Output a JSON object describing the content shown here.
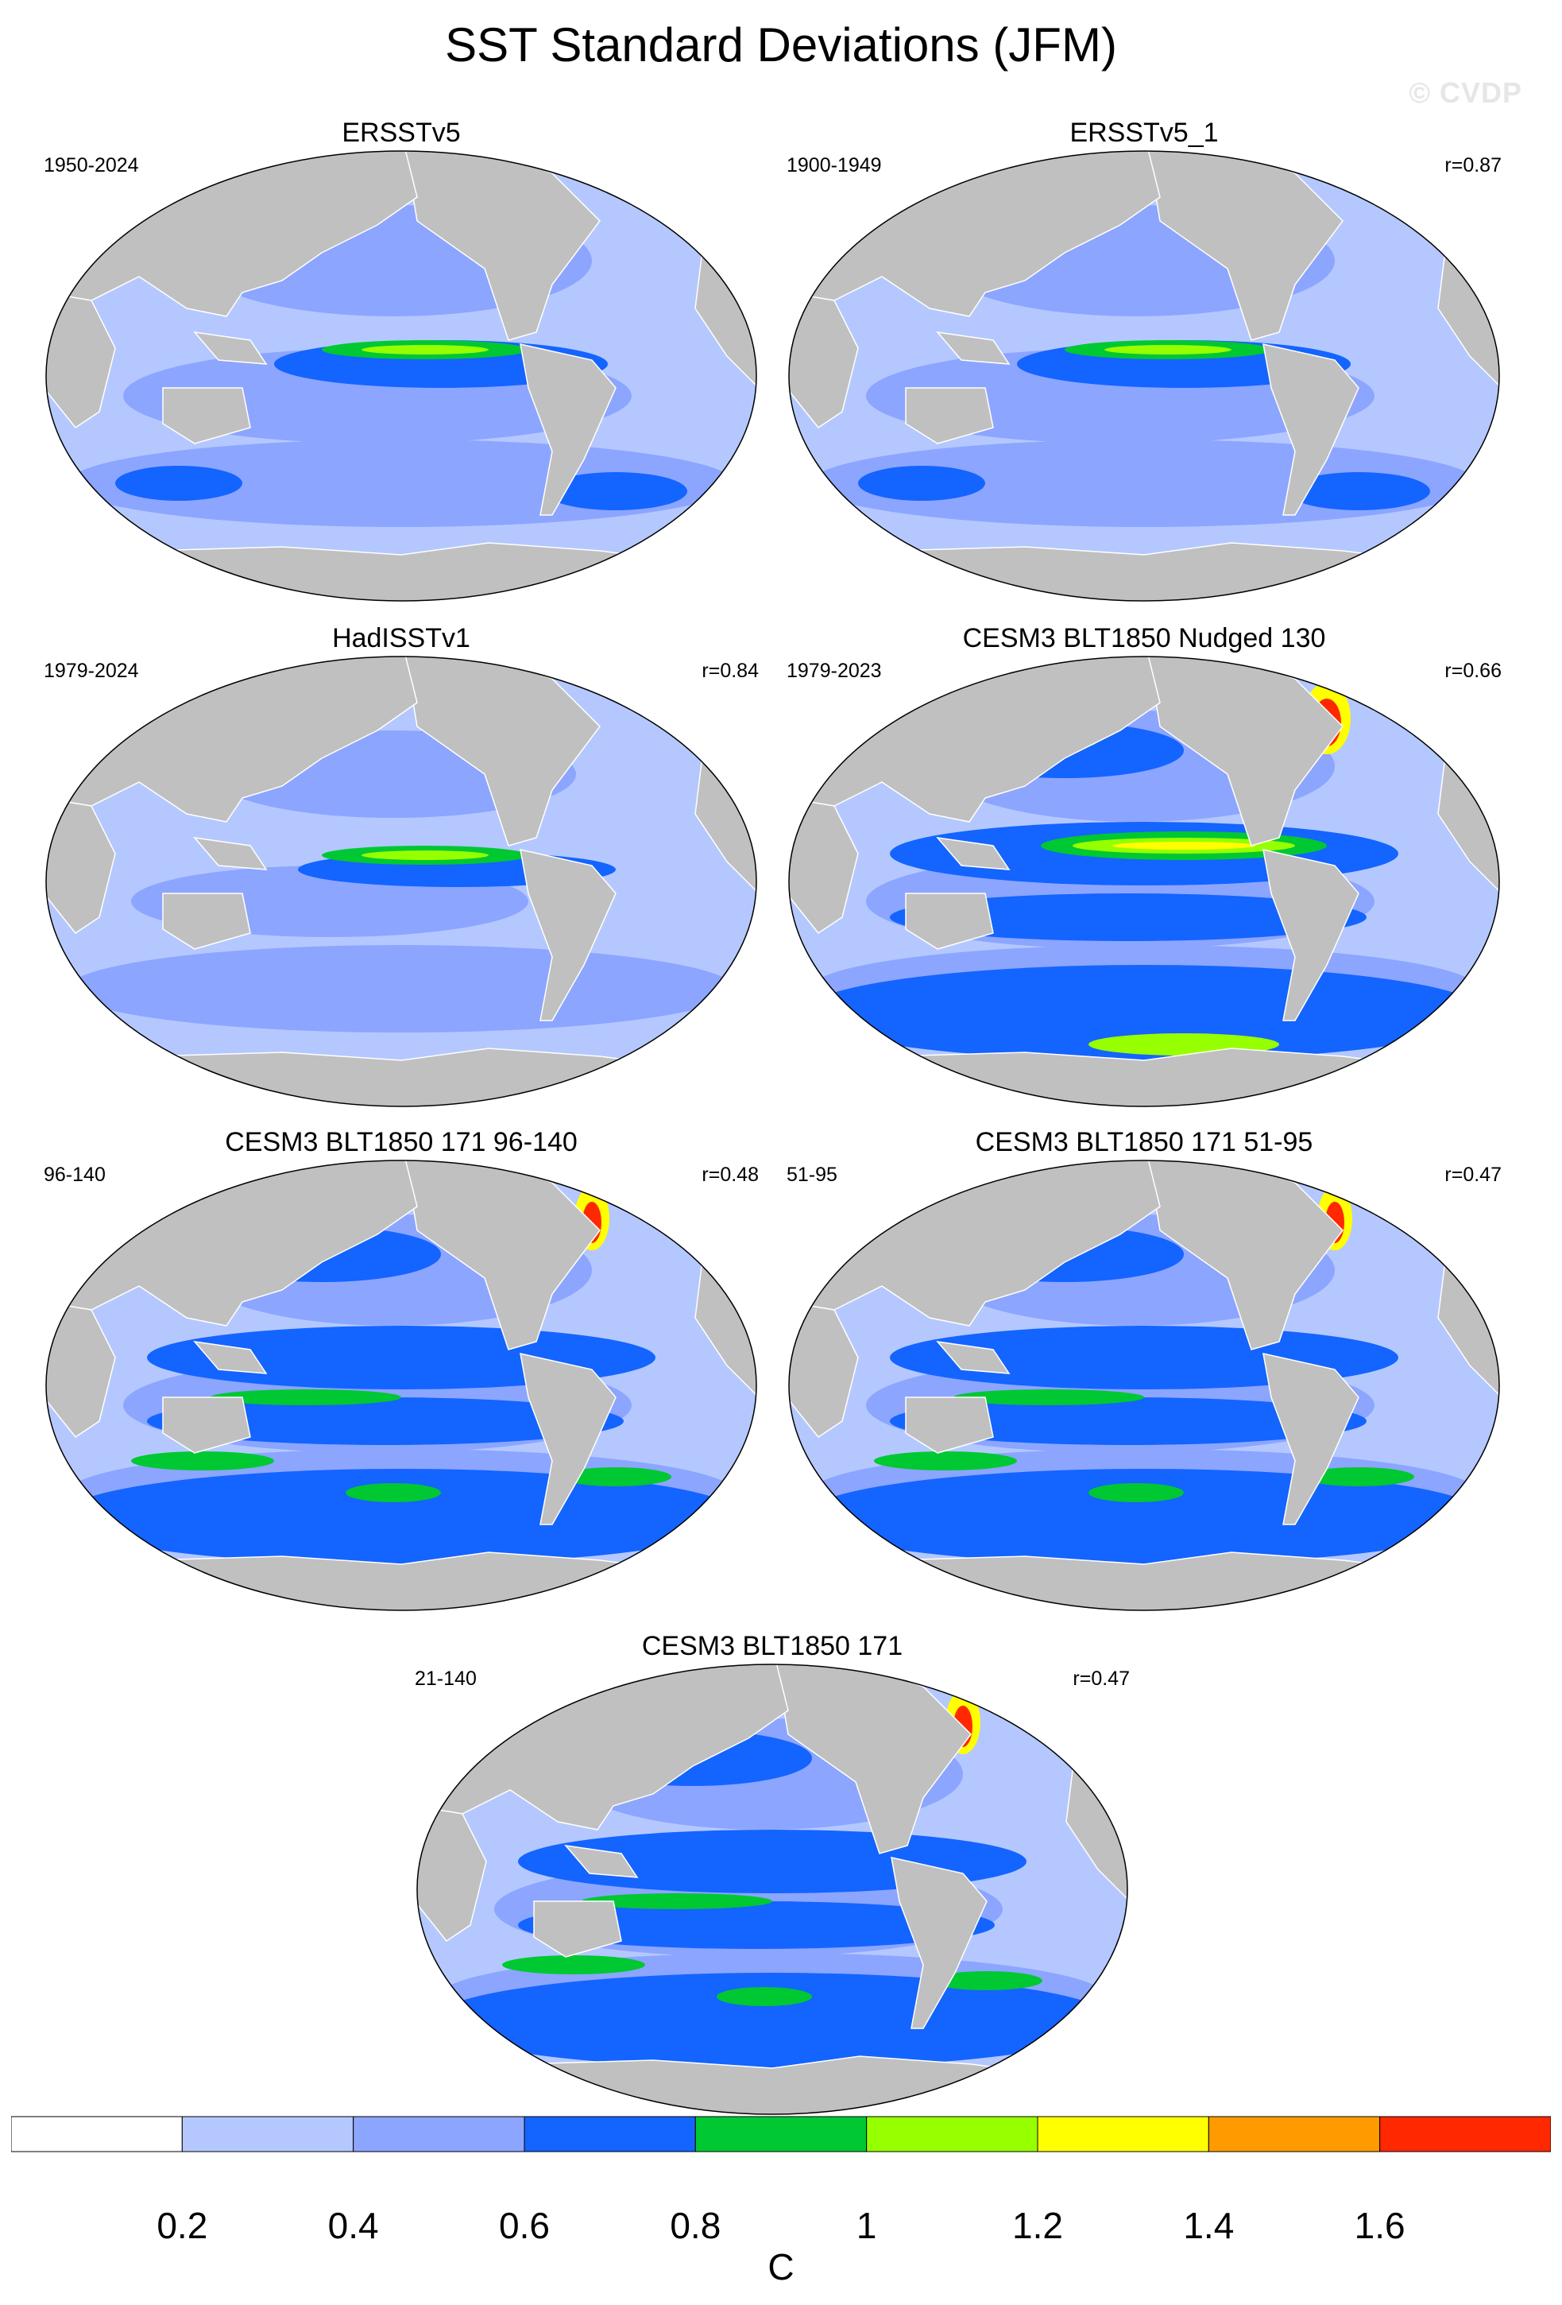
{
  "figure": {
    "title": "SST Standard Deviations (JFM)",
    "watermark": "© CVDP"
  },
  "panels": [
    {
      "id": "ersstv5",
      "title": "ERSSTv5",
      "period": "1950-2024",
      "correlation": "",
      "intensity": "low"
    },
    {
      "id": "ersstv5_1",
      "title": "ERSSTv5_1",
      "period": "1900-1949",
      "correlation": "r=0.87",
      "intensity": "low"
    },
    {
      "id": "hadisstv1",
      "title": "HadISSTv1",
      "period": "1979-2024",
      "correlation": "r=0.84",
      "intensity": "lowest"
    },
    {
      "id": "nudged130",
      "title": "CESM3 BLT1850 Nudged 130",
      "period": "1979-2023",
      "correlation": "r=0.66",
      "intensity": "high"
    },
    {
      "id": "blt171_96_140",
      "title": "CESM3 BLT1850 171 96-140",
      "period": "96-140",
      "correlation": "r=0.48",
      "intensity": "medium"
    },
    {
      "id": "blt171_51_95",
      "title": "CESM3 BLT1850 171 51-95",
      "period": "51-95",
      "correlation": "r=0.47",
      "intensity": "medium"
    },
    {
      "id": "blt171",
      "title": "CESM3 BLT1850 171",
      "period": "21-140",
      "correlation": "r=0.47",
      "intensity": "medium"
    }
  ],
  "colorbar": {
    "unit": "C",
    "tick_labels": [
      "0.2",
      "0.4",
      "0.6",
      "0.8",
      "1",
      "1.2",
      "1.4",
      "1.6"
    ],
    "colors": [
      "#ffffff",
      "#b4c8ff",
      "#8ca5ff",
      "#1464ff",
      "#00c832",
      "#96ff00",
      "#ffff00",
      "#ff9b00",
      "#ff2800"
    ]
  },
  "map_colors": {
    "land": "#c0c0c0",
    "ocean_base": "#b4c8ff"
  }
}
